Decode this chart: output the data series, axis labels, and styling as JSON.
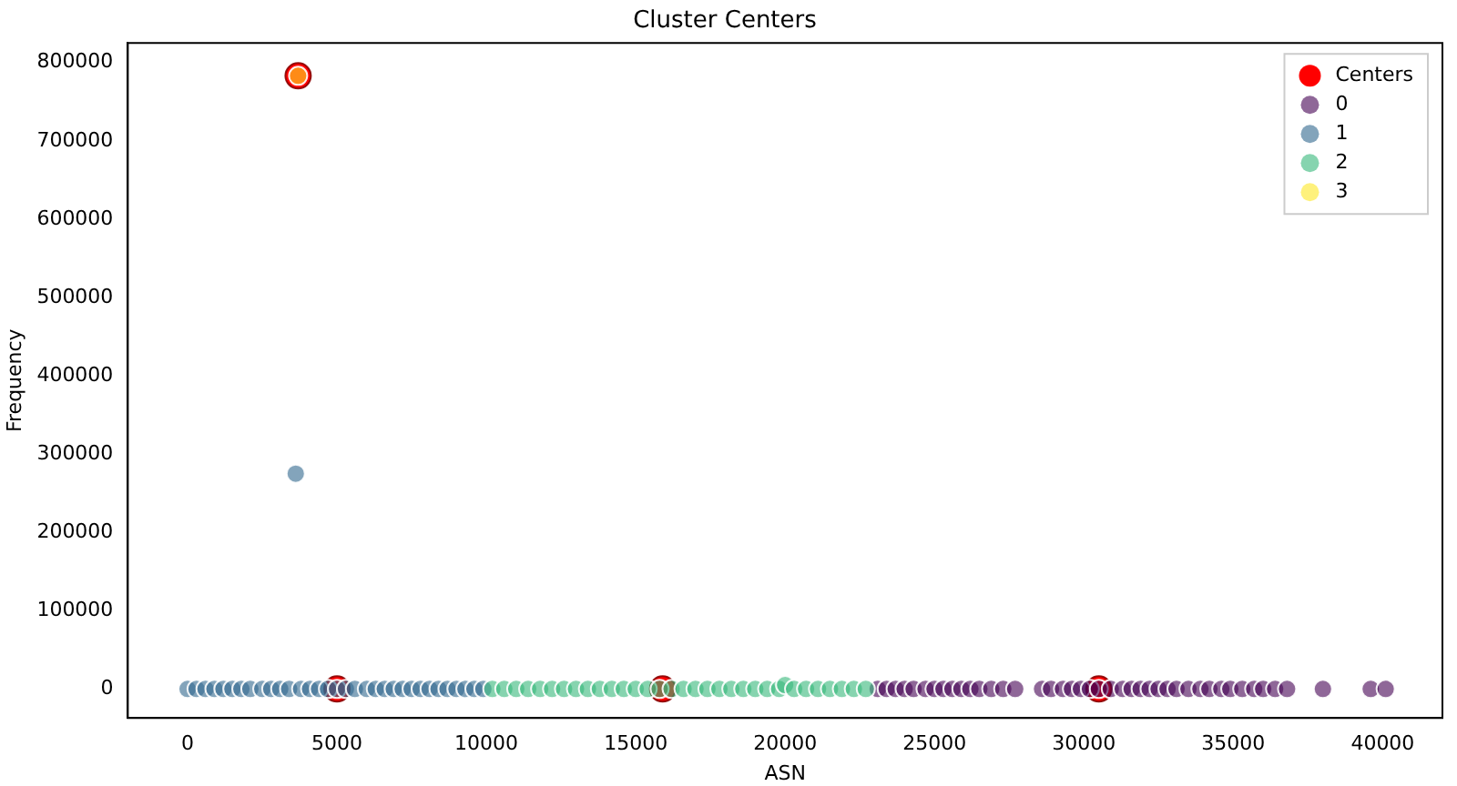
{
  "chart_data": {
    "type": "scatter",
    "title": "Cluster Centers",
    "xlabel": "ASN",
    "ylabel": "Frequency",
    "xlim": [
      -2000,
      42000
    ],
    "ylim": [
      -37000,
      825000
    ],
    "xticks": [
      0,
      5000,
      10000,
      15000,
      20000,
      25000,
      30000,
      35000,
      40000
    ],
    "yticks": [
      0,
      100000,
      200000,
      300000,
      400000,
      500000,
      600000,
      700000,
      800000
    ],
    "grid": false,
    "legend": "top right",
    "marker": "circle",
    "series": [
      {
        "name": "Centers",
        "color": "#ff0000",
        "x": [
          3700,
          5000,
          15900,
          30500
        ],
        "values": [
          783000,
          0,
          0,
          0
        ]
      },
      {
        "name": "0",
        "color": "#440154",
        "x": [
          23100,
          23400,
          23700,
          24000,
          24300,
          24700,
          25000,
          25300,
          25600,
          25900,
          26200,
          26500,
          26900,
          27300,
          27700,
          28600,
          28900,
          29300,
          29600,
          29900,
          30200,
          30500,
          30900,
          31300,
          31600,
          31900,
          32200,
          32500,
          32800,
          33100,
          33500,
          33900,
          34200,
          34600,
          34900,
          35300,
          35700,
          36000,
          36400,
          36800,
          38000,
          39600,
          40100
        ],
        "values": [
          0,
          0,
          0,
          0,
          0,
          0,
          0,
          0,
          0,
          0,
          0,
          0,
          0,
          0,
          0,
          0,
          0,
          0,
          0,
          0,
          0,
          0,
          0,
          0,
          0,
          0,
          0,
          0,
          0,
          0,
          0,
          0,
          0,
          0,
          0,
          0,
          0,
          0,
          0,
          0,
          0,
          0,
          0
        ]
      },
      {
        "name": "1",
        "color": "#31688e",
        "x": [
          0,
          300,
          600,
          900,
          1200,
          1500,
          1800,
          2100,
          2500,
          2800,
          3100,
          3400,
          3800,
          4100,
          4400,
          4700,
          5000,
          5300,
          5600,
          6000,
          6300,
          6600,
          6900,
          7200,
          7500,
          7800,
          8100,
          8400,
          8700,
          9000,
          9300,
          9600,
          9900,
          3620
        ],
        "values": [
          0,
          0,
          0,
          0,
          0,
          0,
          0,
          0,
          0,
          0,
          0,
          0,
          0,
          0,
          0,
          0,
          0,
          0,
          0,
          0,
          0,
          0,
          0,
          0,
          0,
          0,
          0,
          0,
          0,
          0,
          0,
          0,
          0,
          275000
        ]
      },
      {
        "name": "2",
        "color": "#35b779",
        "x": [
          10200,
          10600,
          11000,
          11400,
          11800,
          12200,
          12600,
          13000,
          13400,
          13800,
          14200,
          14600,
          15000,
          15400,
          15800,
          16200,
          16600,
          17000,
          17400,
          17800,
          18200,
          18600,
          19000,
          19400,
          19800,
          20000,
          20300,
          20700,
          21100,
          21500,
          21900,
          22300,
          22700
        ],
        "values": [
          0,
          0,
          0,
          0,
          0,
          0,
          0,
          0,
          0,
          0,
          0,
          0,
          0,
          0,
          0,
          0,
          0,
          0,
          0,
          0,
          0,
          0,
          0,
          0,
          0,
          5000,
          0,
          0,
          0,
          0,
          0,
          0,
          0
        ]
      },
      {
        "name": "3",
        "color": "#fde725",
        "x": [
          3700
        ],
        "values": [
          783000
        ]
      }
    ]
  }
}
